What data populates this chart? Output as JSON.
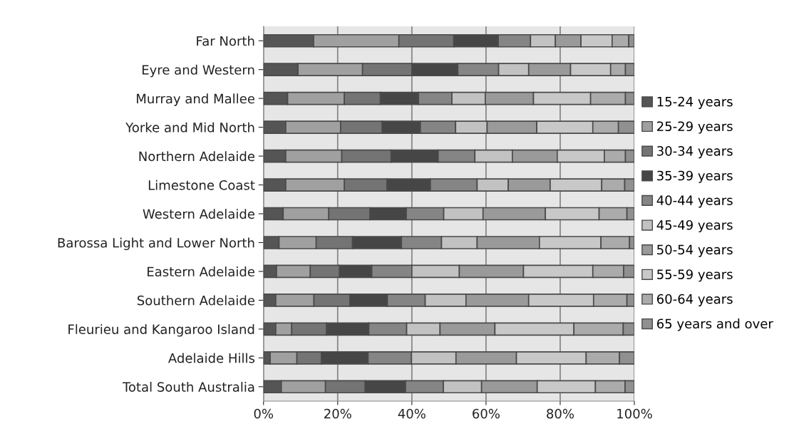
{
  "chart_data": {
    "type": "bar",
    "orientation": "horizontal",
    "stacked": true,
    "categories": [
      "Far North",
      "Eyre and Western",
      "Murray and Mallee",
      "Yorke and Mid North",
      "Northern Adelaide",
      "Limestone Coast",
      "Western Adelaide",
      "Barossa Light and Lower North",
      "Eastern Adelaide",
      "Southern Adelaide",
      "Fleurieu and Kangaroo Island",
      "Adelaide Hills",
      "Total South Australia"
    ],
    "series": [
      {
        "name": "15-24 years",
        "color": "#555555",
        "values": [
          13.5,
          9.3,
          6.5,
          6.0,
          6.0,
          6.0,
          5.3,
          4.2,
          3.5,
          3.3,
          3.3,
          1.8,
          4.8
        ]
      },
      {
        "name": "25-29 years",
        "color": "#a0a0a0",
        "values": [
          23.0,
          17.4,
          15.3,
          14.8,
          15.1,
          15.8,
          12.3,
          10.0,
          9.1,
          10.3,
          4.3,
          7.2,
          11.9
        ]
      },
      {
        "name": "30-34 years",
        "color": "#747474",
        "values": [
          14.8,
          13.3,
          9.7,
          11.2,
          13.3,
          11.5,
          11.1,
          9.8,
          7.9,
          9.7,
          9.4,
          6.6,
          10.7
        ]
      },
      {
        "name": "35-39 years",
        "color": "#464646",
        "values": [
          12.0,
          12.4,
          10.3,
          10.3,
          12.7,
          11.7,
          9.8,
          13.2,
          8.7,
          10.1,
          11.4,
          12.6,
          10.9
        ]
      },
      {
        "name": "40-44 years",
        "color": "#858585",
        "values": [
          8.7,
          11.0,
          9.0,
          9.5,
          9.9,
          12.6,
          10.1,
          10.8,
          10.8,
          10.2,
          10.2,
          11.7,
          10.2
        ]
      },
      {
        "name": "45-49 years",
        "color": "#c2c2c2",
        "values": [
          6.7,
          8.1,
          9.0,
          8.5,
          10.1,
          8.4,
          10.6,
          9.6,
          12.8,
          11.0,
          9.0,
          12.0,
          10.3
        ]
      },
      {
        "name": "50-54 years",
        "color": "#9a9a9a",
        "values": [
          6.9,
          11.3,
          13.0,
          13.4,
          12.1,
          11.3,
          16.8,
          16.8,
          17.3,
          16.9,
          14.8,
          16.3,
          15.0
        ]
      },
      {
        "name": "55-59 years",
        "color": "#c8c8c8",
        "values": [
          8.4,
          10.8,
          15.4,
          15.1,
          12.7,
          13.9,
          14.5,
          16.6,
          18.7,
          17.5,
          21.3,
          18.8,
          15.7
        ]
      },
      {
        "name": "60-64 years",
        "color": "#ababab",
        "values": [
          4.5,
          4.0,
          9.4,
          6.9,
          5.7,
          6.2,
          7.5,
          7.7,
          8.3,
          9.0,
          13.3,
          9.0,
          8.0
        ]
      },
      {
        "name": "65 years and over",
        "color": "#909090",
        "values": [
          1.5,
          2.4,
          2.4,
          4.3,
          2.4,
          2.6,
          2.0,
          1.3,
          2.9,
          2.0,
          3.0,
          4.0,
          2.5
        ]
      }
    ],
    "xlim": [
      0,
      100
    ],
    "xticks": [
      {
        "value": 0,
        "label": "0%"
      },
      {
        "value": 20,
        "label": "20%"
      },
      {
        "value": 40,
        "label": "40%"
      },
      {
        "value": 60,
        "label": "60%"
      },
      {
        "value": 80,
        "label": "80%"
      },
      {
        "value": 100,
        "label": "100%"
      }
    ],
    "grid": "x",
    "legend": "right"
  }
}
